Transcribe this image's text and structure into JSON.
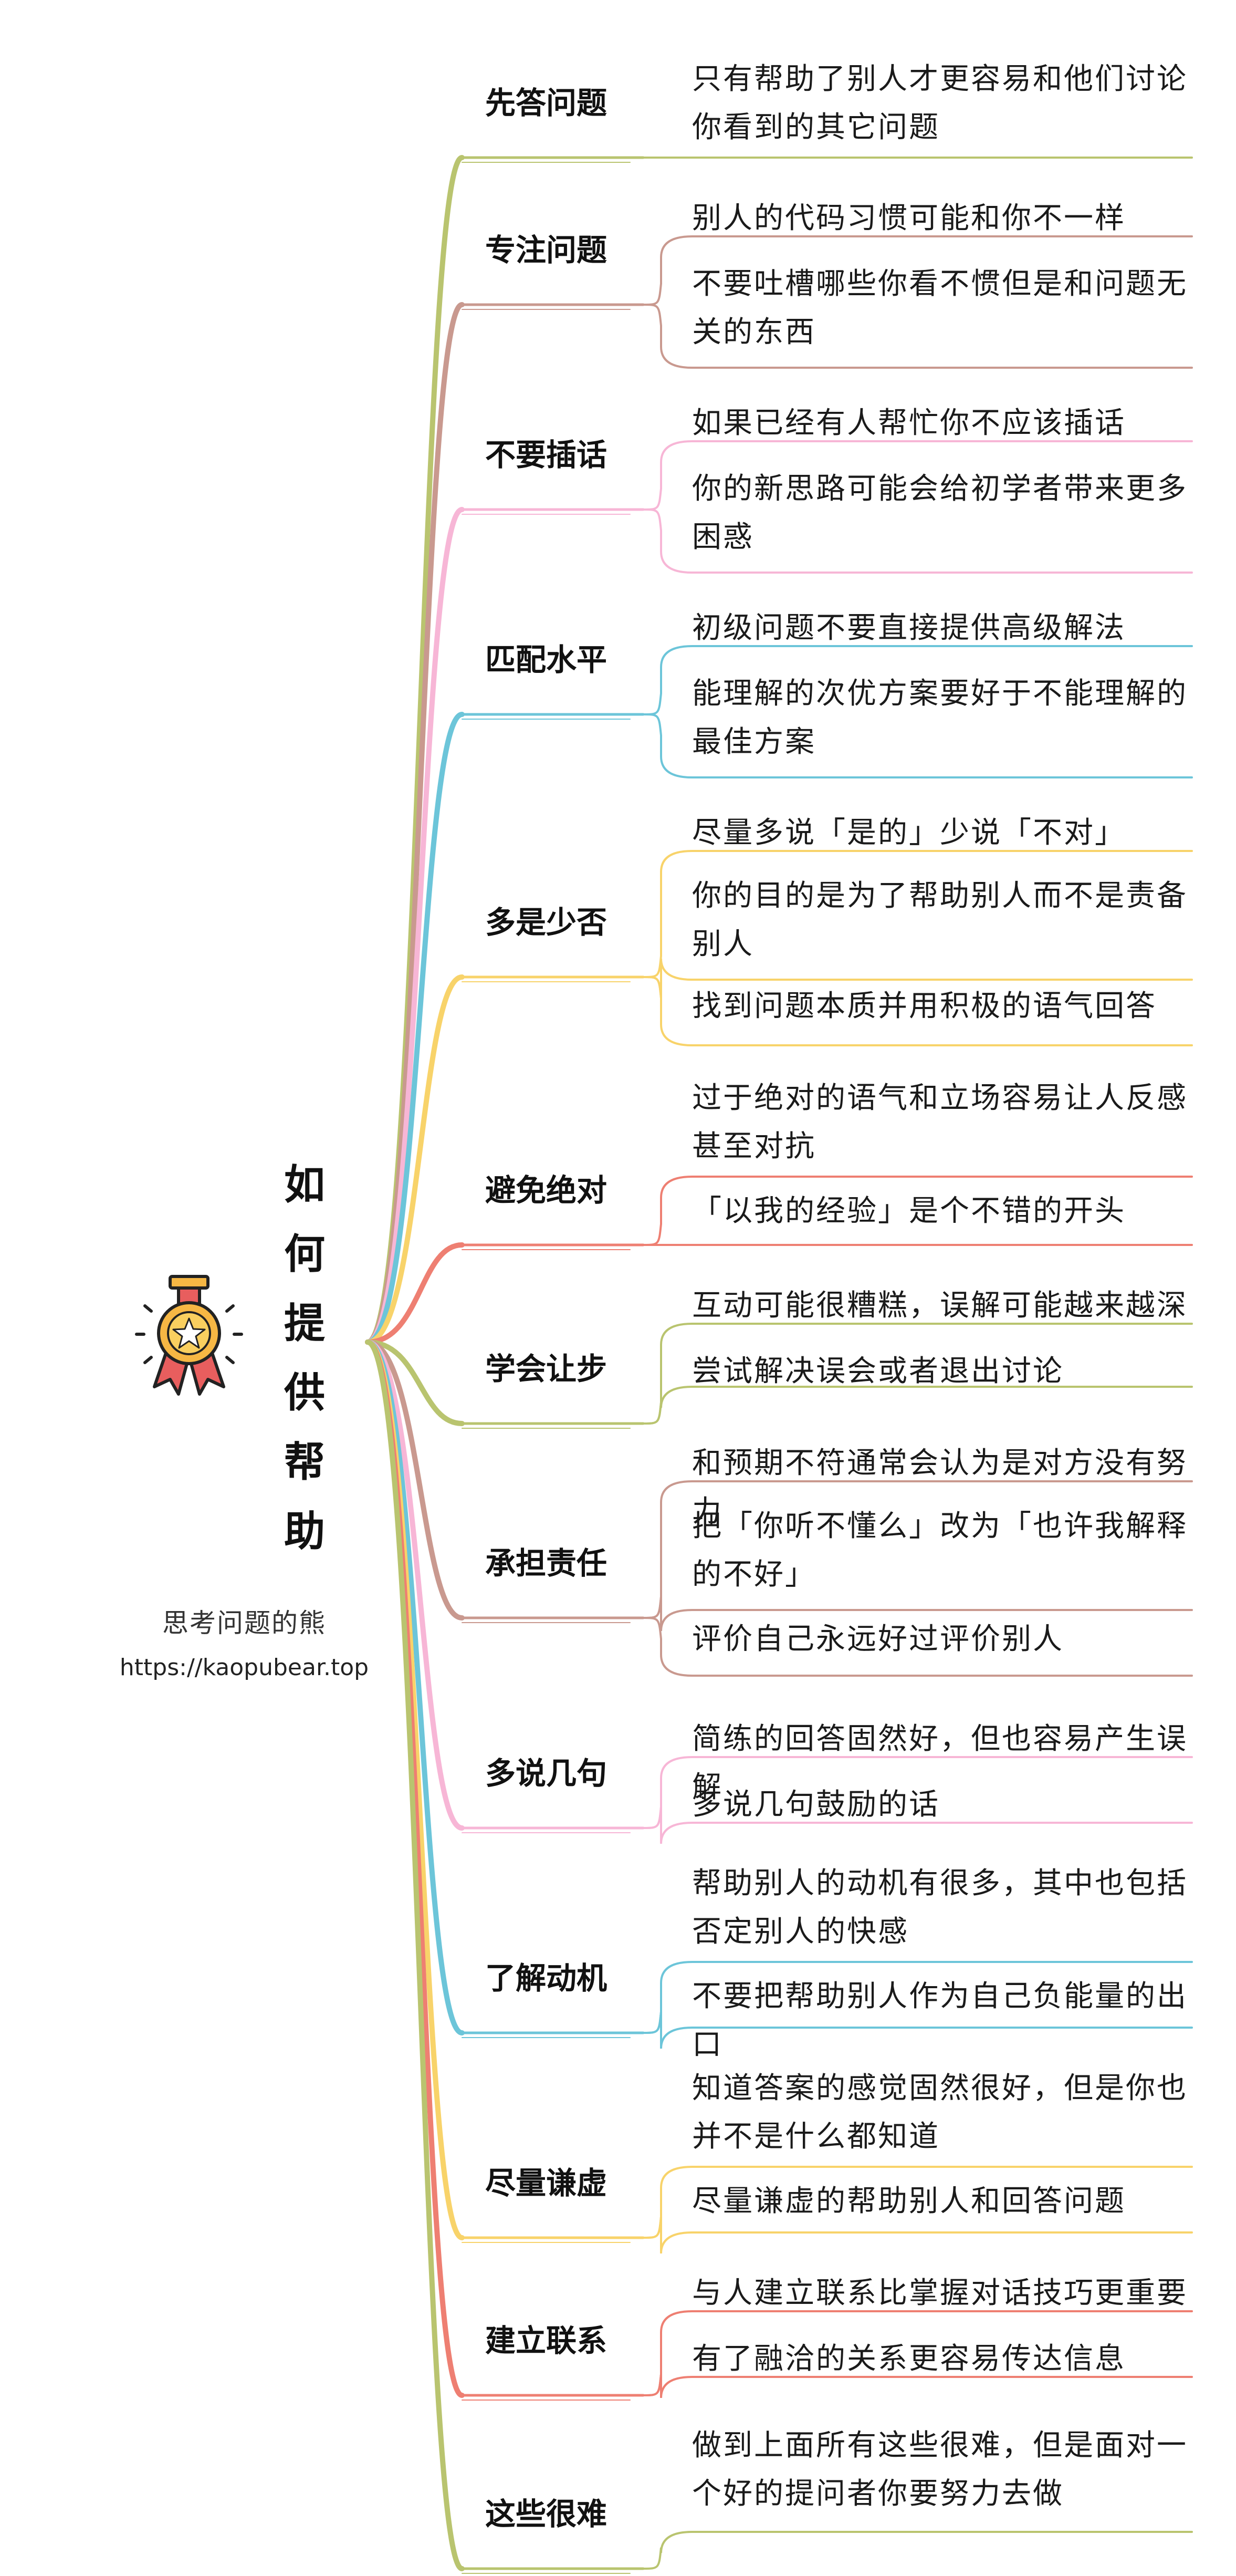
{
  "root": {
    "title": [
      "如",
      "何",
      "提",
      "供",
      "帮",
      "助"
    ],
    "author": "思考问题的熊",
    "site": "https://kaopubear.top",
    "icon": "medal-icon"
  },
  "branches": [
    {
      "label": "先答问题",
      "color": "#b9c46f",
      "leaves": [
        "只有帮助了别人才更容易和他们讨论你看到的其它问题"
      ]
    },
    {
      "label": "专注问题",
      "color": "#c9998f",
      "leaves": [
        "别人的代码习惯可能和你不一样",
        "不要吐槽哪些你看不惯但是和问题无关的东西"
      ]
    },
    {
      "label": "不要插话",
      "color": "#f7b6d6",
      "leaves": [
        "如果已经有人帮忙你不应该插话",
        "你的新思路可能会给初学者带来更多困惑"
      ]
    },
    {
      "label": "匹配水平",
      "color": "#6cc5d9",
      "leaves": [
        "初级问题不要直接提供高级解法",
        "能理解的次优方案要好于不能理解的最佳方案"
      ]
    },
    {
      "label": "多是少否",
      "color": "#f8d36a",
      "leaves": [
        "尽量多说「是的」少说「不对」",
        "你的目的是为了帮助别人而不是责备别人",
        "找到问题本质并用积极的语气回答"
      ]
    },
    {
      "label": "避免绝对",
      "color": "#ee7f72",
      "leaves": [
        "过于绝对的语气和立场容易让人反感甚至对抗",
        "「以我的经验」是个不错的开头"
      ]
    },
    {
      "label": "学会让步",
      "color": "#b9c46f",
      "leaves": [
        "互动可能很糟糕，误解可能越来越深",
        "尝试解决误会或者退出讨论"
      ]
    },
    {
      "label": "承担责任",
      "color": "#c9998f",
      "leaves": [
        "和预期不符通常会认为是对方没有努力",
        "把「你听不懂么」改为「也许我解释的不好」",
        "评价自己永远好过评价别人"
      ]
    },
    {
      "label": "多说几句",
      "color": "#f7b6d6",
      "leaves": [
        "简练的回答固然好，但也容易产生误解",
        "多说几句鼓励的话"
      ]
    },
    {
      "label": "了解动机",
      "color": "#6cc5d9",
      "leaves": [
        "帮助别人的动机有很多，其中也包括否定别人的快感",
        "不要把帮助别人作为自己负能量的出口"
      ]
    },
    {
      "label": "尽量谦虚",
      "color": "#f8d36a",
      "leaves": [
        "知道答案的感觉固然很好，但是你也并不是什么都知道",
        "尽量谦虚的帮助别人和回答问题"
      ]
    },
    {
      "label": "建立联系",
      "color": "#ee7f72",
      "leaves": [
        "与人建立联系比掌握对话技巧更重要",
        "有了融洽的关系更容易传达信息"
      ]
    },
    {
      "label": "这些很难",
      "color": "#b9c46f",
      "leaves": [
        "做到上面所有这些很难，但是面对一个好的提问者你要努力去做"
      ]
    }
  ]
}
